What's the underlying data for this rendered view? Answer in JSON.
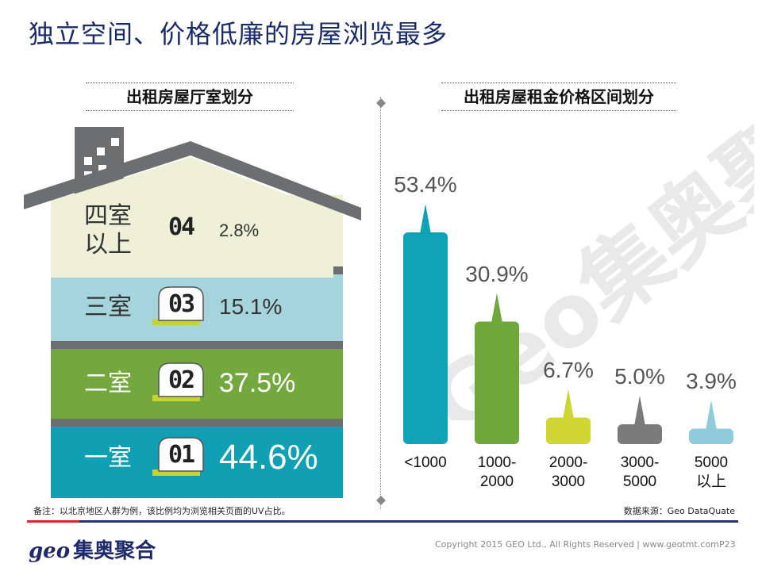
{
  "title": "独立空间、价格低廉的房屋浏览最多",
  "rooms": {
    "section_title": "出租房屋厅室划分",
    "floors": [
      {
        "label": "四室\n以上",
        "badge": "04",
        "value": 2.8,
        "value_text": "2.8%",
        "color": "#eef0d8",
        "text_color": "#333333",
        "pct_size": 22
      },
      {
        "label": "三室",
        "badge": "03",
        "value": 15.1,
        "value_text": "15.1%",
        "color": "#a6d4dc",
        "text_color": "#333333",
        "pct_size": 28
      },
      {
        "label": "二室",
        "badge": "02",
        "value": 37.5,
        "value_text": "37.5%",
        "color": "#72a83e",
        "text_color": "#ffffff",
        "pct_size": 34
      },
      {
        "label": "一室",
        "badge": "01",
        "value": 44.6,
        "value_text": "44.6%",
        "color": "#0fa0b4",
        "text_color": "#ffffff",
        "pct_size": 44
      }
    ]
  },
  "price": {
    "section_title": "出租房屋租金价格区间划分"
  },
  "chart_data": {
    "type": "bar",
    "title": "出租房屋租金价格区间划分",
    "categories": [
      "<1000",
      "1000-\n2000",
      "2000-\n3000",
      "3000-\n5000",
      "5000\n以上"
    ],
    "values": [
      53.4,
      30.9,
      6.7,
      5.0,
      3.9
    ],
    "value_labels": [
      "53.4%",
      "30.9%",
      "6.7%",
      "5.0%",
      "3.9%"
    ],
    "colors": [
      "#0fa3b7",
      "#6fa83a",
      "#cfd631",
      "#7a7a7a",
      "#8fcbdc"
    ],
    "ylim": [
      0,
      60
    ]
  },
  "watermark": "Geo集奥聚合",
  "footer": {
    "note": "备注：以北京地区人群为例，该比例均为浏览相关页面的UV占比。",
    "source": "数据来源：Geo DataQuate",
    "brand_geo": "geo",
    "brand_name": "集奥聚合",
    "copyright": "Copyright 2015 GEO Ltd., All Rights Reserved  |  www.geotmt.com",
    "page": "P23"
  }
}
